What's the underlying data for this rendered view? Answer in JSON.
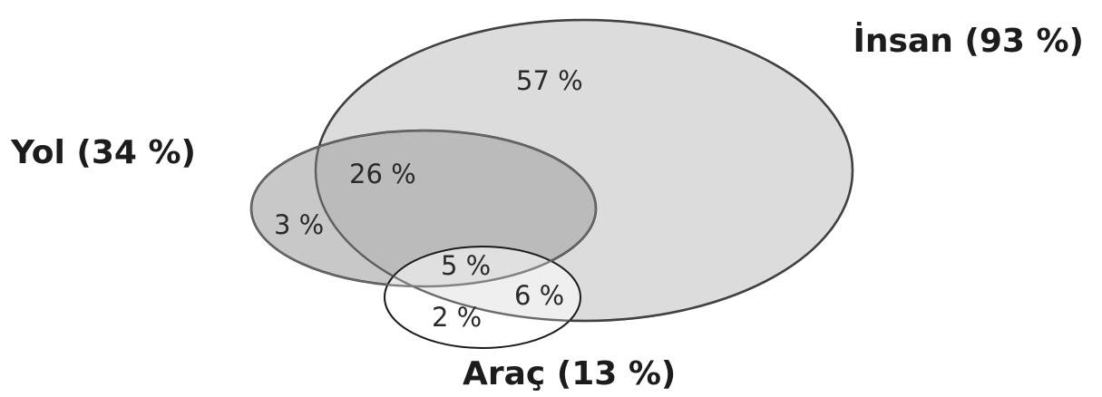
{
  "sets": {
    "insan": {
      "label": "İnsan (93 %)",
      "fill": "#dcdcdc",
      "stroke": "#1a1a1a"
    },
    "yol": {
      "label": "Yol (34 %)",
      "fill": "#a6a6a8",
      "stroke": "#1a1a1a"
    },
    "arac": {
      "label": "Araç (13 %)",
      "fill": "#ffffff",
      "stroke": "#1a1a1a"
    }
  },
  "regions": {
    "insan_only": "57 %",
    "insan_yol": "26 %",
    "yol_only": "3 %",
    "all_three": "5 %",
    "insan_arac": "6 %",
    "arac_only": "2 %"
  }
}
